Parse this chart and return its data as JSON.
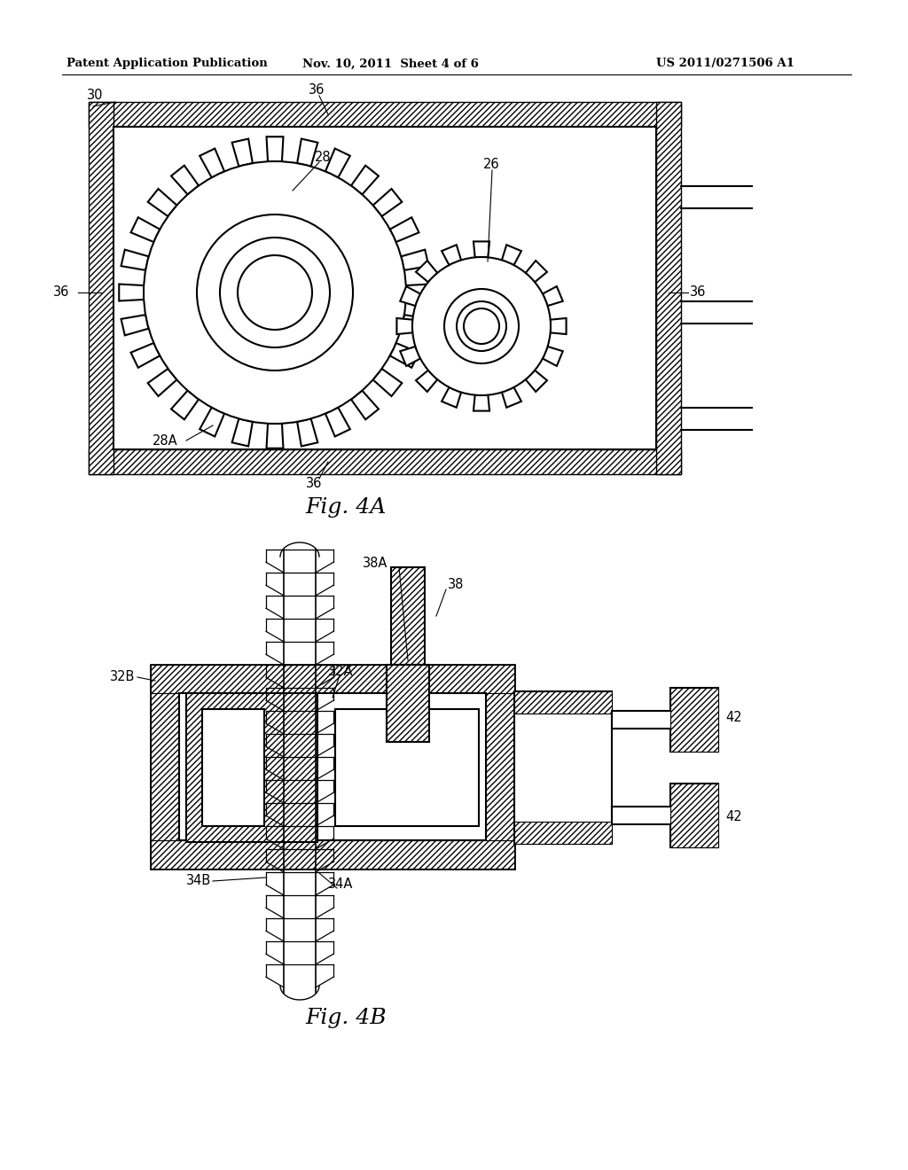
{
  "bg_color": "#ffffff",
  "line_color": "#000000",
  "header_left": "Patent Application Publication",
  "header_mid": "Nov. 10, 2011  Sheet 4 of 6",
  "header_right": "US 2011/0271506 A1",
  "fig4a_label": "Fig. 4A",
  "fig4b_label": "Fig. 4B"
}
